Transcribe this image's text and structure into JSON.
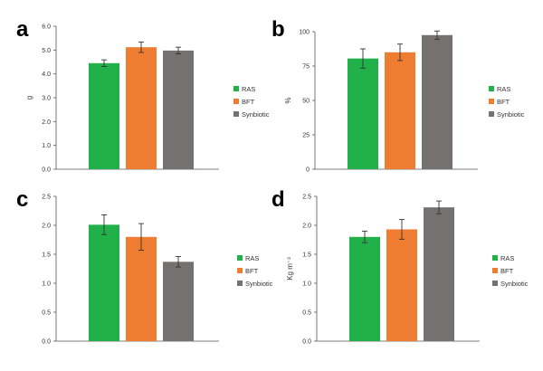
{
  "colors": {
    "RAS": "#22b04b",
    "BFT": "#ef7d31",
    "Synbiotic": "#767171"
  },
  "chart_data": [
    {
      "panel": "a",
      "type": "bar",
      "categories": [
        "RAS",
        "BFT",
        "Synbiotic"
      ],
      "values": [
        4.45,
        5.12,
        4.98
      ],
      "errors": [
        0.14,
        0.22,
        0.14
      ],
      "ylabel": "g",
      "ylim": [
        0,
        6
      ],
      "yticks": [
        "0.0",
        "1.0",
        "2.0",
        "3.0",
        "4.0",
        "5.0",
        "6.0"
      ],
      "ytick_values": [
        0,
        1,
        2,
        3,
        4,
        5,
        6
      ],
      "legend": [
        "RAS",
        "BFT",
        "Synbiotic"
      ]
    },
    {
      "panel": "b",
      "type": "bar",
      "categories": [
        "RAS",
        "BFT",
        "Synbiotic"
      ],
      "values": [
        80.5,
        85.0,
        97.5
      ],
      "errors": [
        7.0,
        6.0,
        3.0
      ],
      "ylabel": "%",
      "ylim": [
        0,
        100
      ],
      "yticks": [
        "0",
        "25",
        "50",
        "75",
        "100"
      ],
      "ytick_values": [
        0,
        25,
        50,
        75,
        100
      ],
      "legend": [
        "RAS",
        "BFT",
        "Synbiotic"
      ]
    },
    {
      "panel": "c",
      "type": "bar",
      "categories": [
        "RAS",
        "BFT",
        "Synbiotic"
      ],
      "values": [
        2.01,
        1.8,
        1.37
      ],
      "errors": [
        0.17,
        0.23,
        0.09
      ],
      "ylabel": "",
      "ylim": [
        0,
        2.5
      ],
      "yticks": [
        "0.0",
        "0.5",
        "1.0",
        "1.5",
        "2.0",
        "2.5"
      ],
      "ytick_values": [
        0,
        0.5,
        1.0,
        1.5,
        2.0,
        2.5
      ],
      "legend": [
        "RAS",
        "BFT",
        "Synbiotic"
      ]
    },
    {
      "panel": "d",
      "type": "bar",
      "categories": [
        "RAS",
        "BFT",
        "Synbiotic"
      ],
      "values": [
        1.8,
        1.93,
        2.31
      ],
      "errors": [
        0.1,
        0.17,
        0.11
      ],
      "ylabel": "Kg m⁻³",
      "ylim": [
        0,
        2.5
      ],
      "yticks": [
        "0.0",
        "0.5",
        "1.0",
        "1.5",
        "2.0",
        "2.5"
      ],
      "ytick_values": [
        0,
        0.5,
        1.0,
        1.5,
        2.0,
        2.5
      ],
      "legend": [
        "RAS",
        "BFT",
        "Synbiotic"
      ]
    }
  ]
}
